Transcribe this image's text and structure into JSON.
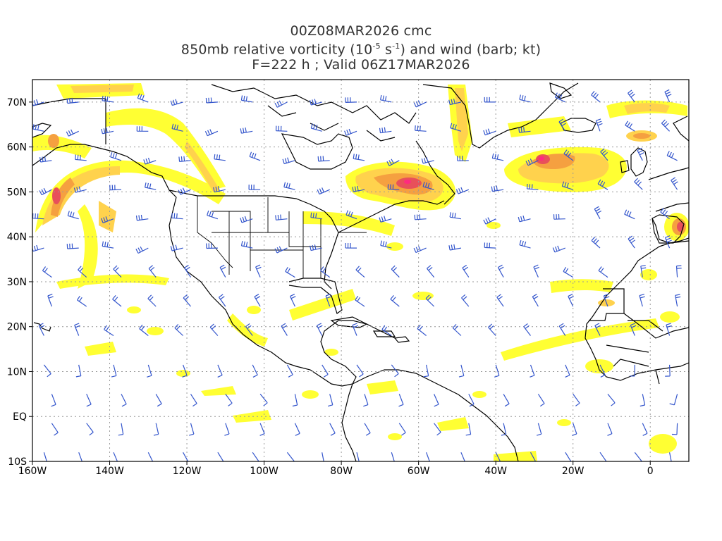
{
  "titles": {
    "line1": "00Z08MAR2026 cmc",
    "line2_pre": "850mb relative vorticity (10",
    "line2_sup1": "-5",
    "line2_mid": " s",
    "line2_sup2": "-1",
    "line2_post": ") and wind (barb; kt)",
    "line3": "F=222 h ; Valid 06Z17MAR2026"
  },
  "axes": {
    "lat_labels": [
      "70N",
      "60N",
      "50N",
      "40N",
      "30N",
      "20N",
      "10N",
      "EQ",
      "10S"
    ],
    "lon_labels": [
      "160W",
      "140W",
      "120W",
      "100W",
      "80W",
      "60W",
      "40W",
      "20W",
      "0"
    ],
    "lat_values": [
      70,
      60,
      50,
      40,
      30,
      20,
      10,
      0,
      -10
    ],
    "lon_values": [
      -160,
      -140,
      -120,
      -100,
      -80,
      -60,
      -40,
      -20,
      0
    ],
    "lon_range": [
      -160,
      10
    ],
    "lat_range": [
      -10,
      75
    ],
    "grid": "dotted"
  },
  "colors": {
    "shade_low": "#ffff33",
    "shade_mid": "#ffd24d",
    "shade_high": "#f5a040",
    "shade_peak": "#e8505a",
    "shade_max": "#ff2a80",
    "barb": "#3355cc",
    "coast": "#000000",
    "grid": "#999999"
  },
  "features": [
    {
      "name": "vort-max-gulf-of-alaska",
      "lon": -155,
      "lat": 49
    },
    {
      "name": "vort-max-quebec-labrador",
      "lon": -63,
      "lat": 52
    },
    {
      "name": "vort-max-north-atlantic",
      "lon": -28,
      "lat": 57
    },
    {
      "name": "vort-max-iberia",
      "lon": 7,
      "lat": 41
    }
  ]
}
